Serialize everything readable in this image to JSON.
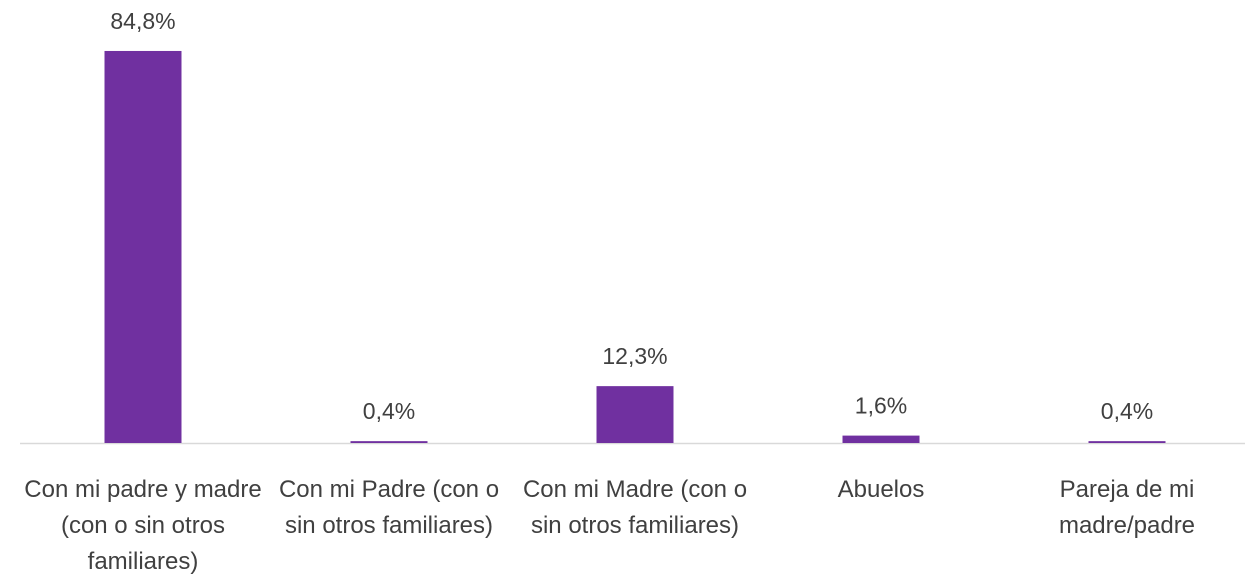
{
  "chart_data": {
    "type": "bar",
    "categories": [
      "Con mi padre y madre (con o sin otros familiares)",
      "Con mi Padre (con o sin otros familiares)",
      "Con mi Madre (con o sin otros familiares)",
      "Abuelos",
      "Pareja de mi madre/padre"
    ],
    "values": [
      84.8,
      0.4,
      12.3,
      1.6,
      0.4
    ],
    "value_labels": [
      "84,8%",
      "0,4%",
      "12,3%",
      "1,6%",
      "0,4%"
    ],
    "color": "#7030a0"
  }
}
